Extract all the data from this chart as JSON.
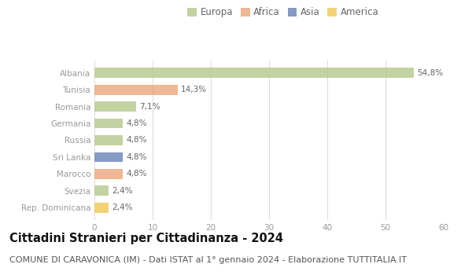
{
  "categories": [
    "Albania",
    "Tunisia",
    "Romania",
    "Germania",
    "Russia",
    "Sri Lanka",
    "Marocco",
    "Svezia",
    "Rep. Dominicana"
  ],
  "values": [
    54.8,
    14.3,
    7.1,
    4.8,
    4.8,
    4.8,
    4.8,
    2.4,
    2.4
  ],
  "labels": [
    "54,8%",
    "14,3%",
    "7,1%",
    "4,8%",
    "4,8%",
    "4,8%",
    "4,8%",
    "2,4%",
    "2,4%"
  ],
  "colors": [
    "#b5c98e",
    "#e8a97e",
    "#b5c98e",
    "#b5c98e",
    "#b5c98e",
    "#6b85b5",
    "#e8a97e",
    "#b5c98e",
    "#f0c95a"
  ],
  "legend_labels": [
    "Europa",
    "Africa",
    "Asia",
    "America"
  ],
  "legend_colors": [
    "#b5c98e",
    "#e8a97e",
    "#6b85b5",
    "#f0c95a"
  ],
  "title": "Cittadini Stranieri per Cittadinanza - 2024",
  "subtitle": "COMUNE DI CARAVONICA (IM) - Dati ISTAT al 1° gennaio 2024 - Elaborazione TUTTITALIA.IT",
  "xlim": [
    0,
    60
  ],
  "xticks": [
    0,
    10,
    20,
    30,
    40,
    50,
    60
  ],
  "background_color": "#ffffff",
  "grid_color": "#dddddd",
  "bar_height": 0.6,
  "title_fontsize": 10.5,
  "subtitle_fontsize": 8,
  "label_fontsize": 7.5,
  "tick_fontsize": 7.5,
  "legend_fontsize": 8.5
}
